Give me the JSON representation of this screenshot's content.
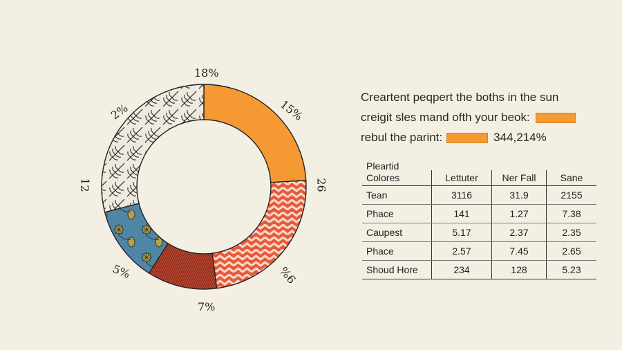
{
  "chart_data": {
    "type": "pie",
    "variant": "donut",
    "slices": [
      {
        "label": "",
        "value": 24,
        "color": "#f59a33",
        "pattern": "solid"
      },
      {
        "label": "",
        "value": 24,
        "color": "#e9583b",
        "pattern": "zigzag"
      },
      {
        "label": "",
        "value": 11,
        "color": "#b8432c",
        "pattern": "knit"
      },
      {
        "label": "",
        "value": 12,
        "color": "#4f86a6",
        "pattern": "floral"
      },
      {
        "label": "",
        "value": 29,
        "color": "#eeeadf",
        "pattern": "leaf-sketch"
      }
    ],
    "outer_labels": [
      "18%",
      "15%",
      "26",
      "9%",
      "7%",
      "5%",
      "12",
      "2%"
    ]
  },
  "caption": {
    "line1": "Creartent peqpert the boths in the sun",
    "line2": "creigit sles mand ofth your beok:",
    "line3_prefix": "rebul the parint:",
    "line3_value": "344,214%",
    "accent_color": "#f59a33"
  },
  "table": {
    "title": "Pleartid",
    "headers": [
      "Colores",
      "Lettuter",
      "Ner Fall",
      "Sane"
    ],
    "rows": [
      [
        "Tean",
        "3116",
        "31.9",
        "2155"
      ],
      [
        "Phace",
        "141",
        "1.27",
        "7.38"
      ],
      [
        "Caupest",
        "5.17",
        "2.37",
        "2.35"
      ],
      [
        "Phace",
        "2.57",
        "7.45",
        "2.65"
      ],
      [
        "Shoud Hore",
        "234",
        "128",
        "5.23"
      ]
    ]
  }
}
